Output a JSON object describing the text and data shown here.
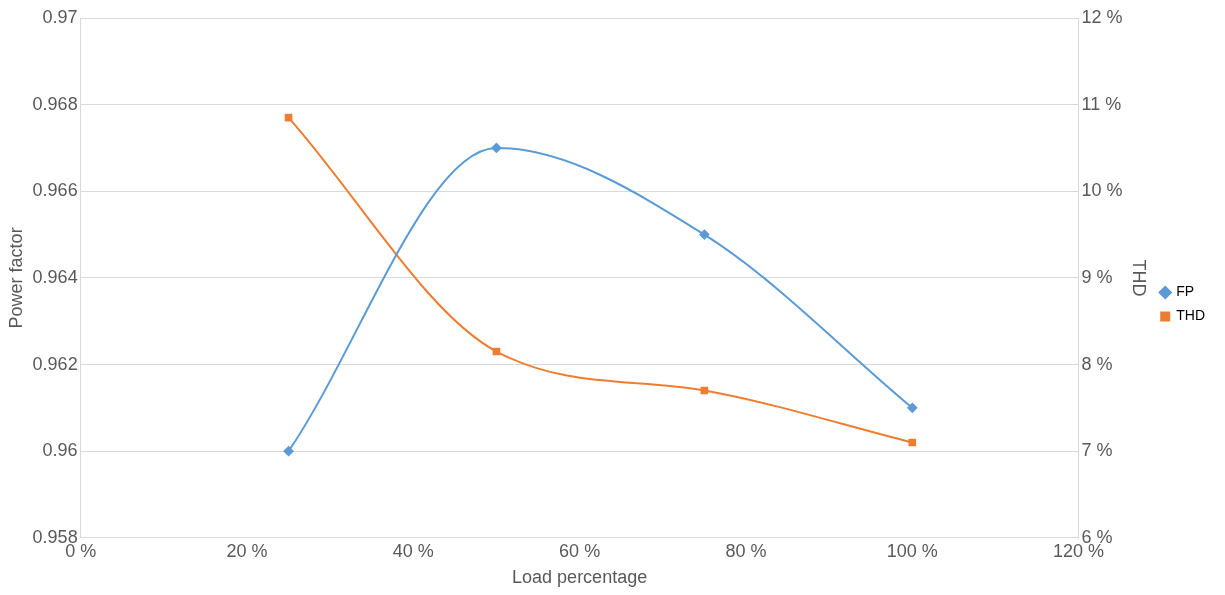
{
  "chart_data": {
    "type": "line",
    "xlabel": "Load percentage",
    "ylabel": "Power factor",
    "y2label": "THD",
    "x": [
      25,
      50,
      75,
      100
    ],
    "series": [
      {
        "name": "FP",
        "color": "#5b9bd5",
        "values": [
          0.96,
          0.967,
          0.965,
          0.961
        ],
        "marker": "diamond"
      },
      {
        "name": "THD",
        "color": "#ed7d31",
        "values": [
          10.85,
          8.15,
          7.7,
          7.1
        ],
        "axis": "y2",
        "marker": "square"
      }
    ],
    "xlim": [
      0,
      120
    ],
    "xticks": [
      {
        "value": 0,
        "label": "0 %"
      },
      {
        "value": 20,
        "label": "20 %"
      },
      {
        "value": 40,
        "label": "40 %"
      },
      {
        "value": 60,
        "label": "60 %"
      },
      {
        "value": 80,
        "label": "80 %"
      },
      {
        "value": 100,
        "label": "100 %"
      },
      {
        "value": 120,
        "label": "120 %"
      }
    ],
    "ylim": [
      0.958,
      0.97
    ],
    "yticks": [
      0.958,
      0.96,
      0.962,
      0.964,
      0.966,
      0.968,
      0.97
    ],
    "y2lim": [
      6,
      12
    ],
    "y2ticks": [
      {
        "value": 6,
        "label": "6 %"
      },
      {
        "value": 7,
        "label": "7 %"
      },
      {
        "value": 8,
        "label": "8 %"
      },
      {
        "value": 9,
        "label": "9 %"
      },
      {
        "value": 10,
        "label": "10 %"
      },
      {
        "value": 11,
        "label": "11 %"
      },
      {
        "value": 12,
        "label": "12 %"
      }
    ],
    "grid": "y",
    "legend": "right"
  }
}
